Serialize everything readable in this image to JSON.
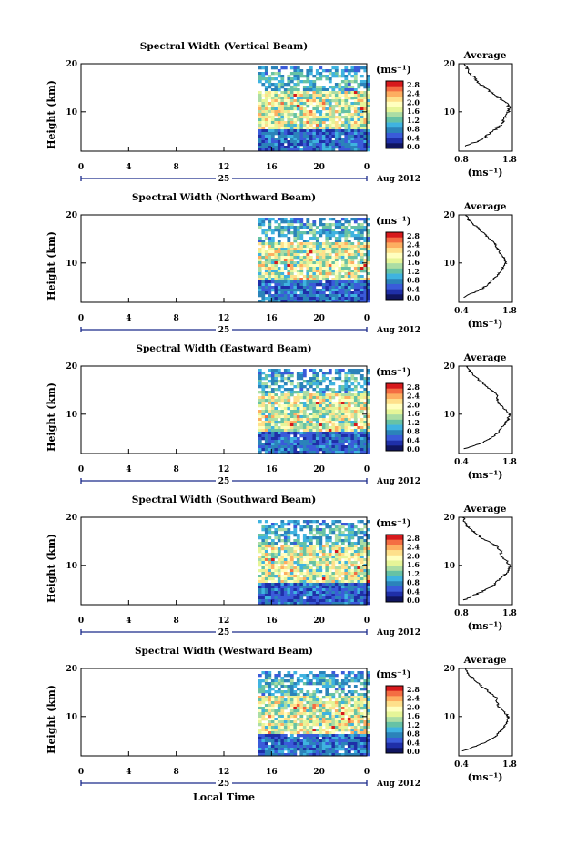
{
  "figure": {
    "xlabel_bottom": "Local Time",
    "ylabel": "Height (km)",
    "date_label": "Aug 2012",
    "date_day": "25",
    "x_ticks": [
      "0",
      "4",
      "8",
      "12",
      "16",
      "20",
      "0"
    ],
    "y_ticks": [
      "20",
      "10"
    ],
    "colorbar_unit": "(ms⁻¹)",
    "colorbar_labels": [
      "2.8",
      "2.4",
      "2.0",
      "1.6",
      "1.2",
      "0.8",
      "0.4",
      "0.0"
    ],
    "colorbar_colors": [
      "#d7191c",
      "#f46d43",
      "#fdae61",
      "#fee08b",
      "#ffffbf",
      "#e6f598",
      "#abdda4",
      "#66c2a5",
      "#3fb3e0",
      "#2b83ba",
      "#3a5bd9",
      "#1f2fa8",
      "#101560"
    ],
    "avg_title": "Average",
    "avg_xlabel": "(ms⁻¹)",
    "avg_y_ticks": [
      "20",
      "10"
    ]
  },
  "chart_data": [
    {
      "type": "heatmap",
      "title": "Spectral Width (Vertical Beam)",
      "xlabel": "Local Time",
      "ylabel": "Height (km)",
      "xlim": [
        0,
        24
      ],
      "ylim": [
        2,
        20
      ],
      "data_start_hour": 14.9,
      "value_range": [
        0.0,
        3.0
      ],
      "average_profile": {
        "xlabel": "(ms⁻¹)",
        "x_ticks": [
          "0.8",
          "1.8"
        ],
        "xlim": [
          0.8,
          1.8
        ],
        "heights": [
          3,
          4,
          5,
          6,
          7,
          8,
          9,
          10,
          11,
          12,
          13,
          14,
          15,
          16,
          17,
          18,
          19,
          20
        ],
        "values": [
          0.9,
          1.15,
          1.3,
          1.42,
          1.55,
          1.62,
          1.67,
          1.72,
          1.75,
          1.68,
          1.55,
          1.42,
          1.3,
          1.18,
          1.1,
          1.0,
          0.95,
          0.92
        ]
      }
    },
    {
      "type": "heatmap",
      "title": "Spectral Width (Northward Beam)",
      "xlabel": "Local Time",
      "ylabel": "Height (km)",
      "xlim": [
        0,
        24
      ],
      "ylim": [
        2,
        20
      ],
      "data_start_hour": 14.9,
      "value_range": [
        0.0,
        3.0
      ],
      "average_profile": {
        "xlabel": "(ms⁻¹)",
        "x_ticks": [
          "0.4",
          "1.8"
        ],
        "xlim": [
          0.4,
          1.8
        ],
        "heights": [
          3,
          4,
          5,
          6,
          7,
          8,
          9,
          10,
          11,
          12,
          13,
          14,
          15,
          16,
          17,
          18,
          19,
          20
        ],
        "values": [
          0.5,
          0.8,
          1.05,
          1.2,
          1.35,
          1.45,
          1.55,
          1.62,
          1.6,
          1.5,
          1.42,
          1.35,
          1.22,
          1.08,
          0.95,
          0.8,
          0.65,
          0.6
        ]
      }
    },
    {
      "type": "heatmap",
      "title": "Spectral Width (Eastward Beam)",
      "xlabel": "Local Time",
      "ylabel": "Height (km)",
      "xlim": [
        0,
        24
      ],
      "ylim": [
        2,
        20
      ],
      "data_start_hour": 14.9,
      "value_range": [
        0.0,
        3.0
      ],
      "average_profile": {
        "xlabel": "(ms⁻¹)",
        "x_ticks": [
          "0.4",
          "1.8"
        ],
        "xlim": [
          0.4,
          1.8
        ],
        "heights": [
          3,
          4,
          5,
          6,
          7,
          8,
          9,
          10,
          11,
          12,
          13,
          14,
          15,
          16,
          17,
          18,
          19,
          20
        ],
        "values": [
          0.55,
          0.95,
          1.2,
          1.38,
          1.5,
          1.6,
          1.68,
          1.72,
          1.62,
          1.48,
          1.4,
          1.42,
          1.25,
          1.1,
          0.95,
          0.8,
          0.68,
          0.62
        ]
      }
    },
    {
      "type": "heatmap",
      "title": "Spectral Width (Southward Beam)",
      "xlabel": "Local Time",
      "ylabel": "Height (km)",
      "xlim": [
        0,
        24
      ],
      "ylim": [
        2,
        20
      ],
      "data_start_hour": 14.9,
      "value_range": [
        0.0,
        3.0
      ],
      "average_profile": {
        "xlabel": "(ms⁻¹)",
        "x_ticks": [
          "0.8",
          "1.8"
        ],
        "xlim": [
          0.8,
          1.8
        ],
        "heights": [
          3,
          4,
          5,
          6,
          7,
          8,
          9,
          10,
          11,
          12,
          13,
          14,
          15,
          16,
          17,
          18,
          19,
          20
        ],
        "values": [
          0.9,
          1.1,
          1.3,
          1.45,
          1.55,
          1.65,
          1.72,
          1.76,
          1.7,
          1.6,
          1.58,
          1.5,
          1.35,
          1.2,
          1.08,
          0.98,
          0.9,
          0.88
        ]
      }
    },
    {
      "type": "heatmap",
      "title": "Spectral Width (Westward Beam)",
      "xlabel": "Local Time",
      "ylabel": "Height (km)",
      "xlim": [
        0,
        24
      ],
      "ylim": [
        2,
        20
      ],
      "data_start_hour": 14.9,
      "value_range": [
        0.0,
        3.0
      ],
      "average_profile": {
        "xlabel": "(ms⁻¹)",
        "x_ticks": [
          "0.4",
          "1.8"
        ],
        "xlim": [
          0.4,
          1.8
        ],
        "heights": [
          3,
          4,
          5,
          6,
          7,
          8,
          9,
          10,
          11,
          12,
          13,
          14,
          15,
          16,
          17,
          18,
          19,
          20
        ],
        "values": [
          0.5,
          0.85,
          1.15,
          1.35,
          1.48,
          1.58,
          1.65,
          1.7,
          1.6,
          1.45,
          1.4,
          1.38,
          1.22,
          1.05,
          0.9,
          0.78,
          0.62,
          0.58
        ]
      }
    }
  ]
}
